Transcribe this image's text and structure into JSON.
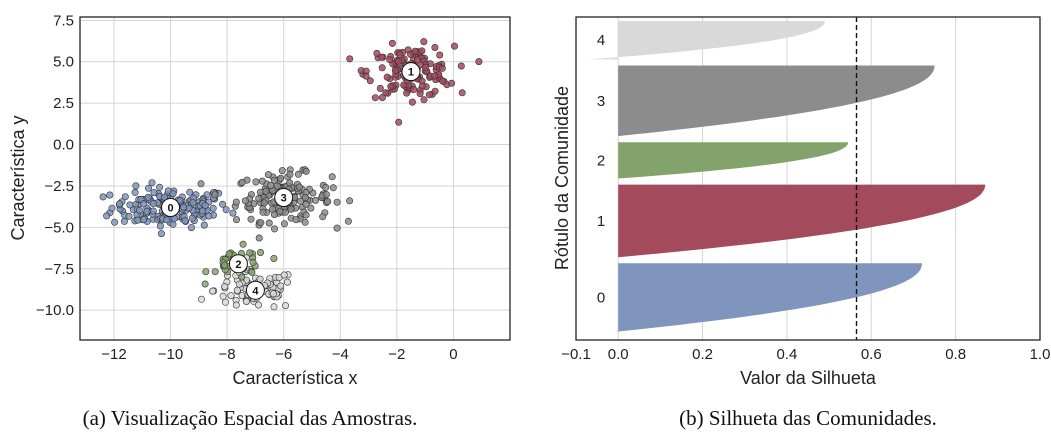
{
  "colors": {
    "c0": "#7f95bd",
    "c1": "#a34a5d",
    "c2": "#84a36c",
    "c3": "#8c8c8c",
    "c4": "#d9d9d9",
    "threshold": "#111111"
  },
  "chart_data": [
    {
      "type": "scatter",
      "title": "",
      "xlabel": "Característica x",
      "ylabel": "Característica y",
      "xlim": [
        -13.2,
        2.0
      ],
      "ylim": [
        -11.8,
        7.7
      ],
      "xticks": [
        -12,
        -10,
        -8,
        -6,
        -4,
        -2,
        0
      ],
      "xtick_labels": [
        "−12",
        "−10",
        "−8",
        "−6",
        "−4",
        "−2",
        "0"
      ],
      "yticks": [
        7.5,
        5.0,
        2.5,
        0.0,
        -2.5,
        -5.0,
        -7.5,
        -10.0
      ],
      "ytick_labels": [
        "7.5",
        "5.0",
        "2.5",
        "0.0",
        "−2.5",
        "−5.0",
        "−7.5",
        "−10.0"
      ],
      "grid": true,
      "series": [
        {
          "label": "0",
          "center": [
            -10.0,
            -3.8
          ],
          "count": 170,
          "spread": [
            1.3,
            0.75
          ]
        },
        {
          "label": "1",
          "center": [
            -1.5,
            4.4
          ],
          "count": 140,
          "spread": [
            0.95,
            0.95
          ]
        },
        {
          "label": "2",
          "center": [
            -7.6,
            -7.2
          ],
          "count": 40,
          "spread": [
            0.65,
            0.6
          ]
        },
        {
          "label": "3",
          "center": [
            -6.0,
            -3.2
          ],
          "count": 160,
          "spread": [
            1.05,
            0.9
          ]
        },
        {
          "label": "4",
          "center": [
            -7.0,
            -8.8
          ],
          "count": 90,
          "spread": [
            0.9,
            0.75
          ]
        }
      ],
      "caption": "(a)  Visualização Espacial das Amostras."
    },
    {
      "type": "area",
      "title": "",
      "xlabel": "Valor da Silhueta",
      "ylabel": "Rótulo da Comunidade",
      "xlim": [
        -0.1,
        1.0
      ],
      "xticks": [
        -0.1,
        0.0,
        0.2,
        0.4,
        0.6,
        0.8,
        1.0
      ],
      "xtick_labels": [
        "−0.1",
        "0.0",
        "0.2",
        "0.4",
        "0.6",
        "0.8",
        "1.0"
      ],
      "average_silhouette": 0.565,
      "grid": true,
      "clusters": [
        {
          "label": "0",
          "size": 0.68,
          "max": 0.72,
          "min": -0.01
        },
        {
          "label": "1",
          "size": 0.72,
          "max": 0.87,
          "min": 0.0
        },
        {
          "label": "2",
          "size": 0.36,
          "max": 0.545,
          "min": 0.0
        },
        {
          "label": "3",
          "size": 0.7,
          "max": 0.75,
          "min": 0.0
        },
        {
          "label": "4",
          "size": 0.38,
          "max": 0.49,
          "min": -0.07
        }
      ],
      "caption": "(b)  Silhueta das Comunidades."
    }
  ]
}
